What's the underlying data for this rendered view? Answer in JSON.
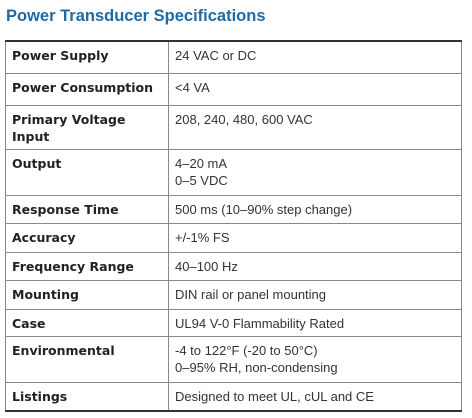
{
  "header": {
    "title": "Power Transducer Specifications"
  },
  "table": {
    "rows": [
      [
        "Power Supply",
        [
          "24 VAC or DC"
        ]
      ],
      [
        "Power Consumption",
        [
          "<4 VA"
        ]
      ],
      [
        "Primary Voltage Input",
        [
          "208, 240, 480, 600 VAC"
        ]
      ],
      [
        "Output",
        [
          "4–20 mA",
          "0–5 VDC"
        ]
      ],
      [
        "Response Time",
        [
          "500 ms (10–90% step change)"
        ]
      ],
      [
        "Accuracy",
        [
          "+/-1% FS"
        ]
      ],
      [
        "Frequency Range",
        [
          "40–100 Hz"
        ]
      ],
      [
        "Mounting",
        [
          "DIN rail or panel mounting"
        ]
      ],
      [
        "Case",
        [
          "UL94 V-0 Flammability Rated"
        ]
      ],
      [
        "Environmental",
        [
          "-4 to 122°F (-20 to 50°C)",
          "0–95% RH, non-condensing"
        ]
      ],
      [
        "Listings",
        [
          "Designed to meet UL, cUL and CE"
        ]
      ]
    ]
  }
}
